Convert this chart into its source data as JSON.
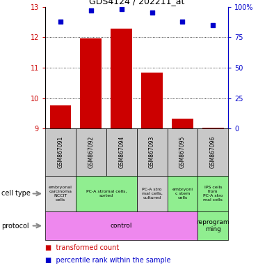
{
  "title": "GDS4124 / 202211_at",
  "samples": [
    "GSM867091",
    "GSM867092",
    "GSM867094",
    "GSM867093",
    "GSM867095",
    "GSM867096"
  ],
  "bar_values": [
    9.77,
    11.97,
    12.27,
    10.85,
    9.32,
    9.02
  ],
  "scatter_values": [
    88,
    97,
    98,
    95,
    88,
    85
  ],
  "ylim_left": [
    9,
    13
  ],
  "ylim_right": [
    0,
    100
  ],
  "yticks_left": [
    9,
    10,
    11,
    12,
    13
  ],
  "yticks_right": [
    0,
    25,
    50,
    75,
    100
  ],
  "ytick_labels_right": [
    "0",
    "25",
    "50",
    "75",
    "100%"
  ],
  "bar_color": "#cc0000",
  "scatter_color": "#0000cc",
  "bar_bottom": 9,
  "gsm_row_color": "#c8c8c8",
  "cell_types": [
    {
      "label": "embryonal\ncarcinoma\nNCCIT\ncells",
      "color": "#d0d0d0",
      "span": [
        0,
        1
      ]
    },
    {
      "label": "PC-A stromal cells,\nsorted",
      "color": "#90ee90",
      "span": [
        1,
        3
      ]
    },
    {
      "label": "PC-A stro\nmal cells,\ncultured",
      "color": "#d0d0d0",
      "span": [
        3,
        4
      ]
    },
    {
      "label": "embryoni\nc stem\ncells",
      "color": "#90ee90",
      "span": [
        4,
        5
      ]
    },
    {
      "label": "IPS cells\nfrom\nPC-A stro\nmal cells",
      "color": "#90ee90",
      "span": [
        5,
        6
      ]
    }
  ],
  "protocols": [
    {
      "label": "control",
      "color": "#ee88ee",
      "span": [
        0,
        5
      ]
    },
    {
      "label": "reprogram\nming",
      "color": "#90ee90",
      "span": [
        5,
        6
      ]
    }
  ]
}
